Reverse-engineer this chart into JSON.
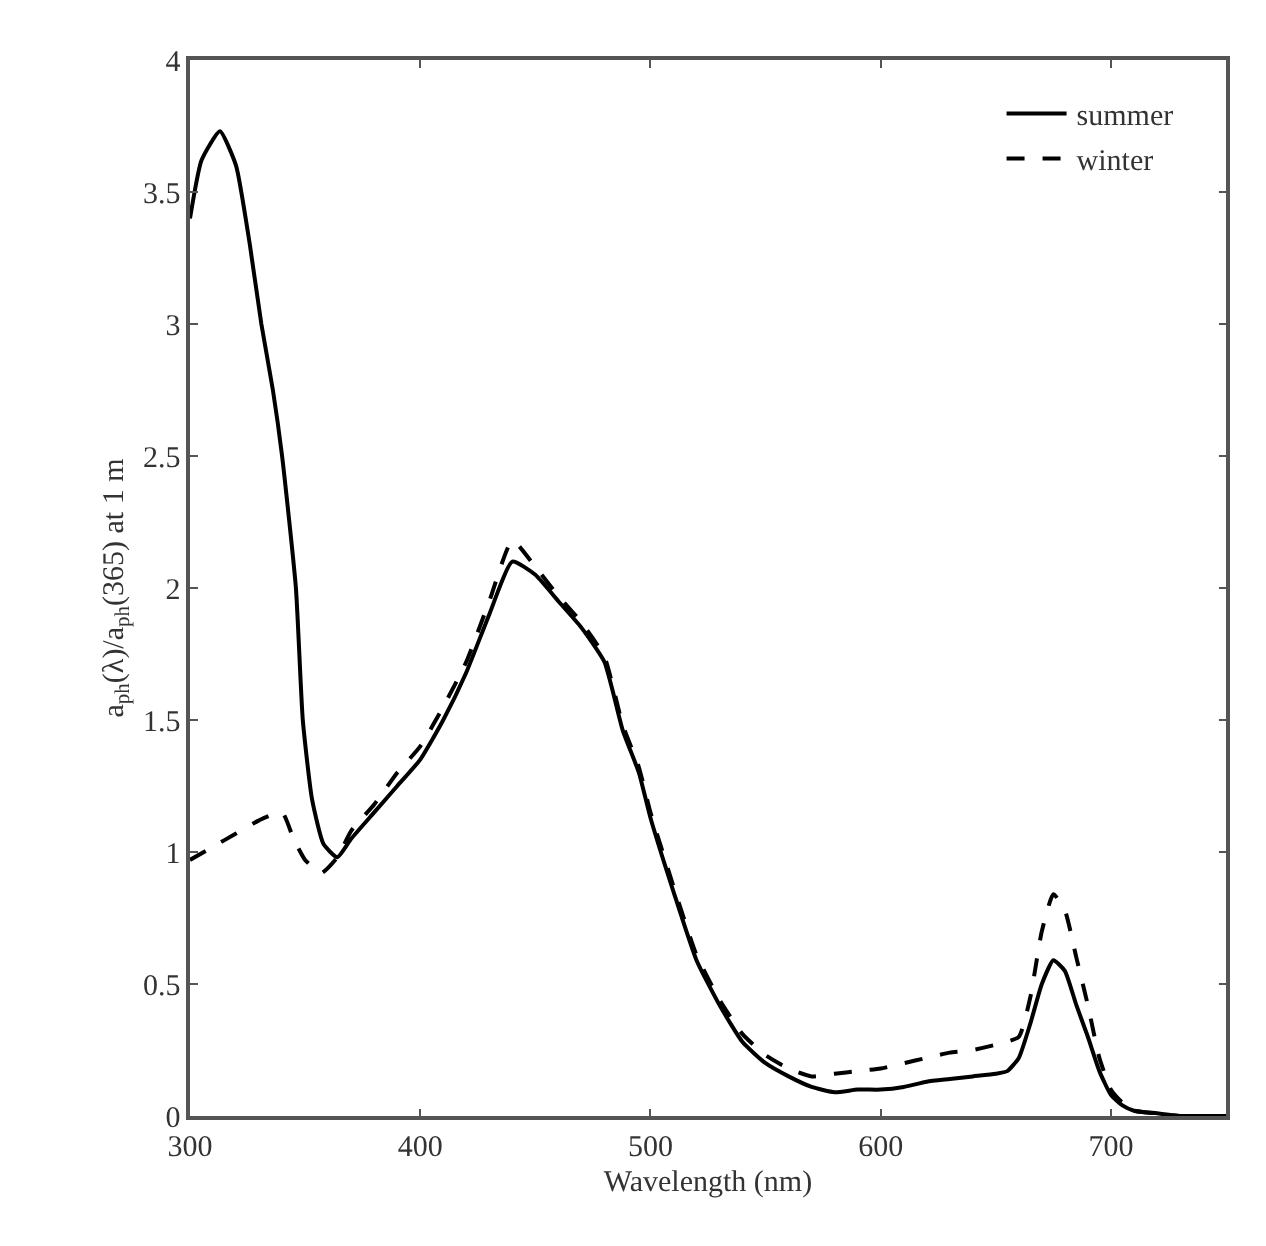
{
  "chart_data": {
    "type": "line",
    "xlabel": "Wavelength (nm)",
    "ylabel": "a$_{ph}$(λ)/a$_{ph}$(365) at 1 m",
    "series": [
      {
        "name": "summer",
        "color": "#000000",
        "line_style": "solid",
        "x": [
          300,
          305,
          313,
          320,
          326,
          331,
          336,
          340,
          346,
          349,
          353,
          358,
          364,
          370,
          380,
          390,
          400,
          410,
          420,
          430,
          440,
          450,
          460,
          470,
          480,
          488,
          495,
          500,
          510,
          520,
          530,
          540,
          550,
          560,
          570,
          580,
          590,
          600,
          610,
          620,
          630,
          640,
          650,
          655,
          660,
          665,
          670,
          675,
          680,
          685,
          690,
          695,
          700,
          705,
          710,
          720,
          730,
          740,
          750
        ],
        "values": [
          3.4,
          3.62,
          3.73,
          3.6,
          3.3,
          3.0,
          2.75,
          2.5,
          2.0,
          1.5,
          1.2,
          1.03,
          0.98,
          1.05,
          1.15,
          1.25,
          1.35,
          1.5,
          1.68,
          1.9,
          2.1,
          2.05,
          1.95,
          1.85,
          1.72,
          1.46,
          1.3,
          1.13,
          0.85,
          0.59,
          0.42,
          0.28,
          0.2,
          0.15,
          0.11,
          0.09,
          0.1,
          0.1,
          0.11,
          0.13,
          0.14,
          0.15,
          0.16,
          0.17,
          0.22,
          0.35,
          0.5,
          0.59,
          0.55,
          0.42,
          0.3,
          0.17,
          0.08,
          0.04,
          0.02,
          0.01,
          0.0,
          0.0,
          0.0
        ]
      },
      {
        "name": "winter",
        "color": "#000000",
        "line_style": "dashed",
        "x": [
          300,
          310,
          320,
          330,
          340,
          345,
          350,
          357,
          364,
          370,
          380,
          390,
          400,
          410,
          420,
          430,
          440,
          450,
          460,
          470,
          480,
          488,
          495,
          500,
          510,
          520,
          530,
          540,
          550,
          560,
          570,
          580,
          590,
          600,
          610,
          620,
          630,
          640,
          650,
          660,
          665,
          670,
          675,
          680,
          685,
          690,
          695,
          700,
          705,
          710,
          720,
          730,
          740,
          750
        ],
        "values": [
          0.97,
          1.02,
          1.07,
          1.12,
          1.15,
          1.05,
          0.97,
          0.92,
          0.98,
          1.08,
          1.18,
          1.3,
          1.4,
          1.55,
          1.72,
          1.95,
          2.18,
          2.08,
          1.97,
          1.87,
          1.74,
          1.48,
          1.32,
          1.15,
          0.87,
          0.61,
          0.44,
          0.31,
          0.23,
          0.18,
          0.15,
          0.16,
          0.17,
          0.18,
          0.2,
          0.22,
          0.24,
          0.25,
          0.27,
          0.3,
          0.45,
          0.7,
          0.84,
          0.78,
          0.6,
          0.42,
          0.22,
          0.1,
          0.05,
          0.02,
          0.01,
          0.0,
          0.0,
          0.0
        ]
      }
    ],
    "xlim": [
      300,
      750
    ],
    "xticks": [
      300,
      400,
      500,
      600,
      700
    ],
    "ylim": [
      0,
      4
    ],
    "yticks": [
      0,
      0.5,
      1,
      1.5,
      2,
      2.5,
      3,
      3.5,
      4
    ],
    "legend": "top right",
    "marker": "none"
  }
}
